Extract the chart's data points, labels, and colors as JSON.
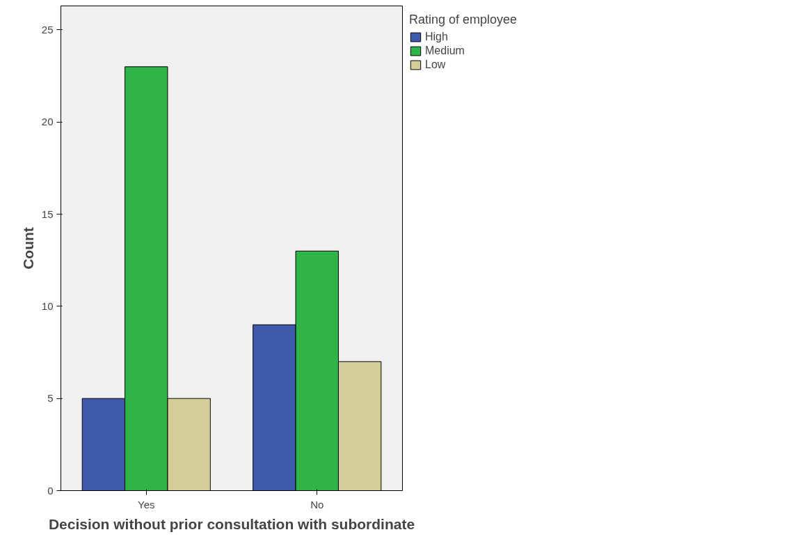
{
  "chart_data": {
    "type": "bar",
    "xlabel": "Decision without prior consultation with subordinate",
    "ylabel": "Count",
    "legend_title": "Rating of employee",
    "categories": [
      "Yes",
      "No"
    ],
    "series": [
      {
        "name": "High",
        "color": "#3e58ac",
        "values": [
          5,
          9
        ]
      },
      {
        "name": "Medium",
        "color": "#2fb447",
        "values": [
          23,
          13
        ]
      },
      {
        "name": "Low",
        "color": "#d3ce97",
        "values": [
          5,
          7
        ]
      }
    ],
    "ylim": [
      0,
      26.3
    ],
    "yticks": [
      0,
      5,
      10,
      15,
      20,
      25
    ],
    "grid": false,
    "legend": "top right"
  }
}
